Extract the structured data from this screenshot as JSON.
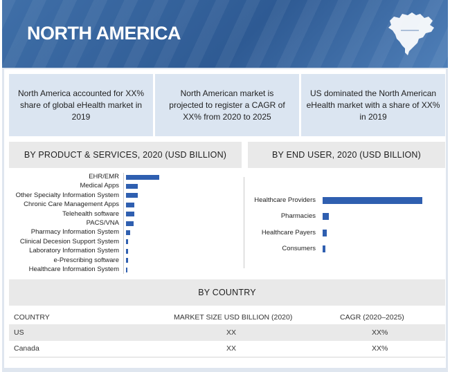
{
  "banner": {
    "title": "NORTH AMERICA"
  },
  "highlights": [
    "North America accounted for XX% share of global eHealth market in 2019",
    "North American market is projected to register a CAGR of XX% from 2020 to 2025",
    "US dominated the North American eHealth market with a share of XX% in 2019"
  ],
  "chart_data": [
    {
      "type": "bar",
      "orientation": "horizontal",
      "title": "BY PRODUCT & SERVICES, 2020 (USD BILLION)",
      "categories": [
        "EHR/EMR",
        "Medical Apps",
        "Other Specialty Information System",
        "Chronic Care Management Apps",
        "Telehealth software",
        "PACS/VNA",
        "Pharmacy Information System",
        "Clinical Decesion Support System",
        "Laboratory Information System",
        "e-Prescribing software",
        "Healthcare Information System"
      ],
      "values": [
        100,
        36,
        35,
        26,
        24,
        22,
        12,
        6,
        6,
        6,
        2
      ],
      "xlim": [
        0,
        100
      ],
      "xlabel": "",
      "ylabel": ""
    },
    {
      "type": "bar",
      "orientation": "horizontal",
      "title": "BY END USER, 2020 (USD BILLION)",
      "categories": [
        "Healthcare Providers",
        "Pharmacies",
        "Healthcare Payers",
        "Consumers"
      ],
      "values": [
        100,
        6,
        4,
        3
      ],
      "xlim": [
        0,
        100
      ],
      "xlabel": "",
      "ylabel": ""
    }
  ],
  "country": {
    "title": "BY COUNTRY",
    "headers": [
      "COUNTRY",
      "MARKET SIZE USD BILLION (2020)",
      "CAGR (2020–2025)"
    ],
    "rows": [
      [
        "US",
        "XX",
        "XX%"
      ],
      [
        "Canada",
        "XX",
        "XX%"
      ]
    ]
  },
  "colors": {
    "bar": "#2f5fb0",
    "banner": "#3a67a3"
  }
}
